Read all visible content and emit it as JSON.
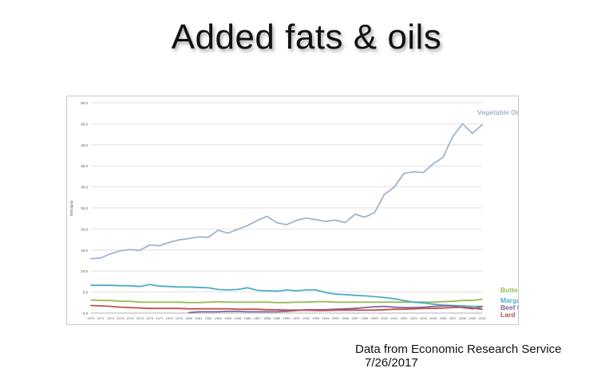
{
  "slide": {
    "title": "Added fats & oils",
    "source": "Data from Economic Research Service",
    "date": "7/26/2017"
  },
  "chart_data": {
    "type": "line",
    "ylabel": "lbs/cap/yr",
    "ylim": [
      0,
      50
    ],
    "yticks": [
      "0.0",
      "5.0",
      "10.0",
      "15.0",
      "20.0",
      "25.0",
      "30.0",
      "35.0",
      "40.0",
      "45.0",
      "50.0"
    ],
    "grid": true,
    "legend": "inline-right",
    "x": [
      "1970",
      "1971",
      "1972",
      "1973",
      "1974",
      "1975",
      "1976",
      "1977",
      "1978",
      "1979",
      "1980",
      "1981",
      "1982",
      "1983",
      "1984",
      "1985",
      "1986",
      "1987",
      "1988",
      "1989",
      "1990",
      "1991",
      "1992",
      "1993",
      "1994",
      "1995",
      "1996",
      "1997",
      "1998",
      "1999",
      "2000",
      "2001",
      "2002",
      "2003",
      "2004",
      "2005",
      "2006",
      "2007",
      "2008",
      "2009",
      "2010"
    ],
    "series": [
      {
        "name": "Vegetable Oils",
        "color": "#9fb4cd",
        "values": [
          12.9,
          13.1,
          14.1,
          14.8,
          15.1,
          14.9,
          16.2,
          16.0,
          16.8,
          17.4,
          17.7,
          18.1,
          18.0,
          19.7,
          19.0,
          19.9,
          20.8,
          22.0,
          23.0,
          21.5,
          21.0,
          22.0,
          22.6,
          22.2,
          21.8,
          22.1,
          21.5,
          23.5,
          22.8,
          23.9,
          28.2,
          29.9,
          33.2,
          33.6,
          33.4,
          35.5,
          37.0,
          42.0,
          45.0,
          42.7,
          44.8
        ]
      },
      {
        "name": "Butter",
        "color": "#9bbb59",
        "values": [
          3.1,
          3.0,
          3.0,
          2.8,
          2.8,
          2.6,
          2.6,
          2.6,
          2.6,
          2.6,
          2.5,
          2.5,
          2.6,
          2.7,
          2.6,
          2.6,
          2.6,
          2.6,
          2.6,
          2.5,
          2.5,
          2.6,
          2.6,
          2.7,
          2.7,
          2.6,
          2.6,
          2.6,
          2.6,
          2.6,
          2.6,
          2.6,
          2.6,
          2.6,
          2.6,
          2.6,
          2.7,
          2.8,
          3.0,
          3.0,
          3.3
        ]
      },
      {
        "name": "Margarine",
        "color": "#4bacc6",
        "values": [
          6.6,
          6.6,
          6.6,
          6.5,
          6.5,
          6.3,
          6.8,
          6.4,
          6.3,
          6.2,
          6.2,
          6.1,
          6.0,
          5.6,
          5.5,
          5.6,
          6.0,
          5.4,
          5.3,
          5.2,
          5.5,
          5.3,
          5.5,
          5.5,
          4.9,
          4.5,
          4.4,
          4.2,
          4.1,
          3.9,
          3.7,
          3.4,
          3.0,
          2.6,
          2.4,
          2.1,
          1.9,
          1.8,
          1.7,
          1.6,
          1.6
        ]
      },
      {
        "name": "Beef tallow",
        "color": "#8064a2",
        "values": [
          null,
          null,
          null,
          null,
          null,
          null,
          null,
          null,
          null,
          null,
          0.1,
          0.3,
          0.3,
          0.3,
          0.4,
          0.4,
          0.3,
          0.3,
          0.3,
          0.3,
          0.4,
          0.6,
          0.8,
          0.8,
          0.8,
          0.9,
          1.0,
          1.1,
          1.3,
          1.5,
          1.6,
          1.4,
          1.3,
          1.3,
          1.4,
          1.6,
          1.7,
          1.7,
          1.3,
          1.0,
          1.5
        ]
      },
      {
        "name": "Lard",
        "color": "#c0504d",
        "values": [
          1.8,
          1.7,
          1.6,
          1.4,
          1.3,
          1.2,
          1.1,
          1.1,
          1.1,
          1.1,
          1.0,
          1.0,
          1.0,
          1.0,
          1.0,
          0.9,
          0.9,
          0.9,
          0.8,
          0.8,
          0.7,
          0.7,
          0.7,
          0.6,
          0.6,
          0.7,
          0.7,
          0.7,
          0.7,
          0.7,
          0.8,
          0.9,
          0.9,
          1.0,
          1.1,
          1.1,
          1.2,
          1.3,
          1.4,
          1.2,
          0.9
        ]
      }
    ]
  }
}
